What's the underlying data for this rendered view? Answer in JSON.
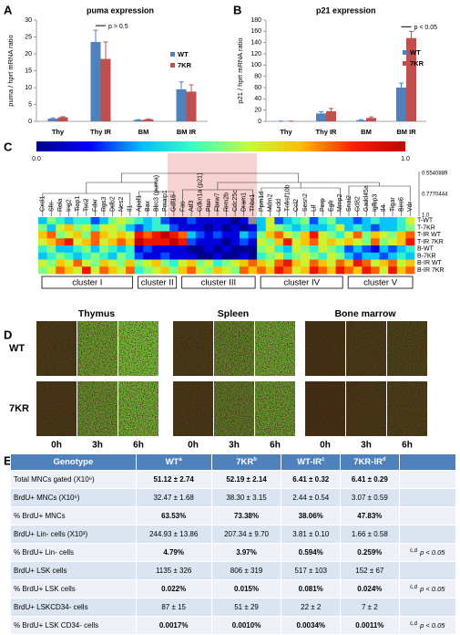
{
  "chart_data": [
    {
      "type": "bar",
      "panel": "A",
      "title": "puma expression",
      "ylabel": "puma / hprt mRNA ratio",
      "categories": [
        "Thy",
        "Thy IR",
        "BM",
        "BM IR"
      ],
      "series": [
        {
          "name": "WT",
          "color": "#4f81bd",
          "values": [
            0.8,
            23.5,
            0.4,
            9.5
          ],
          "errors": [
            0.2,
            3.5,
            0.1,
            2.2
          ]
        },
        {
          "name": "7KR",
          "color": "#c0504d",
          "values": [
            1.2,
            18.5,
            0.6,
            8.8
          ],
          "errors": [
            0.2,
            5,
            0.1,
            2
          ]
        }
      ],
      "ylim": [
        0,
        30
      ],
      "yticks": [
        0,
        5,
        10,
        15,
        20,
        25,
        30
      ],
      "annotation": "p > 0.5",
      "legend": "right"
    },
    {
      "type": "bar",
      "panel": "B",
      "title": "p21 expression",
      "ylabel": "p21 / hprt mRNA ratio",
      "categories": [
        "Thy",
        "Thy IR",
        "BM",
        "BM IR"
      ],
      "series": [
        {
          "name": "WT",
          "color": "#4f81bd",
          "values": [
            0,
            14,
            2,
            60
          ],
          "errors": [
            0.5,
            3,
            1,
            8
          ]
        },
        {
          "name": "7KR",
          "color": "#c0504d",
          "values": [
            0,
            18,
            6,
            148
          ],
          "errors": [
            0.5,
            5,
            2,
            12
          ]
        }
      ],
      "ylim": [
        0,
        180
      ],
      "yticks": [
        0,
        20,
        40,
        60,
        80,
        100,
        120,
        140,
        160,
        180
      ],
      "annotation": "p < 0.05",
      "legend": "right"
    }
  ],
  "panel_c": {
    "letter": "C",
    "scale": [
      {
        "value": 0,
        "label": "0.0"
      },
      {
        "value": 1,
        "label": "1.0"
      }
    ],
    "colormap": [
      "#00008f",
      "#0000ff",
      "#00bfff",
      "#40ffbf",
      "#bfff40",
      "#ffbf00",
      "#ff2000",
      "#c00000"
    ],
    "dendrogram_scale": [
      "0.5540889",
      "0.7770444",
      "1.0"
    ],
    "genes": [
      "Cxcl1",
      "Sfn",
      "Rela",
      "Ing2",
      "Tiap1",
      "Tsc2",
      "Fdxr",
      "Rgs3",
      "Ddb2",
      "Nes2",
      "Il1",
      "Apaf1",
      "Bax",
      "Bbc3 (puma)",
      "Pmaip1",
      "Gdf15",
      "Fas",
      "Atf3",
      "Cdkn1a (p21)",
      "Ptsn",
      "Fbxw7",
      "Rrm2b",
      "Cdc25c",
      "Dram1",
      "Thbs1",
      "Ppm1d",
      "Mdm2",
      "Lrdd",
      "Tnfrsf10b",
      "Ccl2",
      "Sesn2",
      "Lif",
      "Perp",
      "Egfr",
      "Mmp2",
      "Snai2",
      "Cd82",
      "Gadd45a",
      "Igfbp3",
      "Il4",
      "Tigar",
      "Birc5",
      "Vdr"
    ],
    "rows": [
      "T-WT",
      "T-7KR",
      "T-IR WT",
      "T-IR 7KR",
      "B-WT",
      "B-7KR",
      "B-IR WT",
      "B-IR 7KR"
    ],
    "values": [
      [
        0.3,
        0.5,
        0.4,
        0.3,
        0.4,
        0.4,
        0.2,
        0.3,
        0.5,
        0.6,
        0.5,
        0.4,
        0.3,
        0.4,
        0.2,
        0.1,
        0.1,
        0.2,
        0.1,
        0.1,
        0.1,
        0.1,
        0.0,
        0.1,
        null,
        0.3,
        0.6,
        0.2,
        0.3,
        0.4,
        0.5,
        0.2,
        0.4,
        0.5,
        0.3,
        0.3,
        0.2,
        0.3,
        0.4,
        0.3,
        0.3,
        0.4,
        0.6
      ],
      [
        0.5,
        0.3,
        0.6,
        0.7,
        0.5,
        0.6,
        0.4,
        0.6,
        0.6,
        0.5,
        0.3,
        0.2,
        0.3,
        0.4,
        0.4,
        0.2,
        0.1,
        0.1,
        0.1,
        0.0,
        0.1,
        0.0,
        0.1,
        0.0,
        0.1,
        0.3,
        0.6,
        0.5,
        0.4,
        0.3,
        0.4,
        0.3,
        0.3,
        0.4,
        0.6,
        0.3,
        0.4,
        0.3,
        0.2,
        0.3,
        0.3,
        0.4,
        0.5
      ],
      [
        0.7,
        0.8,
        0.5,
        0.6,
        0.7,
        0.5,
        0.8,
        0.7,
        0.6,
        0.7,
        0.6,
        0.9,
        0.8,
        0.9,
        1.0,
        0.9,
        0.8,
        0.3,
        0.2,
        0.1,
        0.2,
        0.1,
        0.1,
        0.3,
        0.2,
        0.5,
        0.7,
        0.8,
        0.6,
        0.5,
        0.7,
        0.9,
        0.6,
        0.5,
        0.4,
        0.6,
        0.8,
        0.5,
        0.7,
        0.6,
        0.5,
        0.7,
        0.8
      ],
      [
        0.6,
        0.7,
        0.8,
        0.9,
        0.6,
        0.7,
        0.8,
        0.6,
        0.7,
        0.8,
        0.7,
        1.0,
        0.9,
        0.9,
        0.9,
        1.0,
        0.9,
        0.2,
        0.1,
        0.1,
        0.1,
        0.0,
        0.1,
        0.2,
        0.1,
        0.6,
        0.5,
        0.7,
        0.9,
        0.6,
        0.7,
        0.8,
        0.6,
        0.7,
        0.6,
        0.7,
        0.6,
        0.5,
        0.8,
        0.5,
        0.6,
        0.7,
        0.9
      ],
      [
        0.4,
        0.5,
        0.3,
        0.3,
        0.4,
        0.5,
        0.3,
        0.5,
        0.4,
        0.3,
        0.4,
        0.1,
        0.2,
        0.1,
        0.1,
        0.1,
        0.1,
        0.0,
        0.0,
        0.1,
        0.0,
        0.1,
        0.0,
        0.0,
        0.0,
        0.5,
        0.6,
        0.4,
        0.3,
        0.6,
        0.5,
        0.4,
        0.6,
        0.5,
        0.4,
        0.2,
        0.3,
        0.2,
        0.1,
        0.3,
        0.2,
        0.3,
        0.4
      ],
      [
        0.3,
        0.4,
        0.5,
        0.4,
        0.3,
        0.4,
        0.5,
        0.4,
        0.3,
        0.5,
        0.4,
        0.2,
        0.1,
        0.1,
        0.2,
        0.1,
        0.1,
        0.1,
        0.0,
        0.0,
        0.1,
        0.0,
        0.0,
        0.1,
        0.0,
        0.4,
        0.5,
        0.6,
        0.4,
        0.5,
        0.6,
        0.5,
        0.4,
        0.6,
        0.5,
        0.3,
        0.2,
        0.3,
        0.3,
        0.2,
        0.3,
        0.4,
        0.3
      ],
      [
        0.6,
        0.5,
        0.7,
        0.6,
        0.8,
        0.6,
        0.5,
        0.7,
        0.6,
        0.5,
        0.7,
        0.5,
        0.6,
        0.7,
        0.5,
        0.4,
        0.6,
        0.7,
        0.5,
        0.6,
        0.4,
        0.5,
        0.6,
        0.7,
        0.8,
        0.7,
        0.6,
        0.8,
        0.9,
        0.7,
        0.6,
        0.8,
        0.7,
        0.6,
        0.8,
        0.7,
        0.9,
        0.8,
        0.6,
        0.7,
        0.8,
        0.6,
        0.7
      ],
      [
        0.5,
        0.6,
        0.8,
        0.7,
        0.6,
        0.9,
        0.6,
        0.8,
        0.7,
        0.6,
        0.8,
        0.4,
        0.5,
        0.6,
        0.7,
        0.5,
        0.7,
        0.8,
        0.6,
        0.5,
        0.7,
        0.6,
        0.5,
        0.8,
        0.7,
        0.8,
        0.7,
        0.9,
        0.8,
        0.6,
        0.7,
        0.9,
        0.8,
        0.7,
        0.9,
        0.8,
        0.7,
        0.9,
        0.8,
        0.6,
        0.9,
        0.7,
        0.8
      ]
    ],
    "clusters": [
      "cluster I",
      "cluster II",
      "cluster III",
      "cluster IV",
      "cluster V"
    ]
  },
  "panel_d": {
    "letter": "D",
    "columns": [
      "Thymus",
      "Spleen",
      "Bone marrow"
    ],
    "rows": [
      "WT",
      "7KR"
    ],
    "times": [
      "0h",
      "3h",
      "6h"
    ]
  },
  "panel_e": {
    "letter": "E",
    "header": [
      {
        "name": "Genotype"
      },
      {
        "name": "WT",
        "sup": "a"
      },
      {
        "name": "7KR",
        "sup": "b"
      },
      {
        "name": "WT-IR",
        "sup": "c"
      },
      {
        "name": "7KR-IR",
        "sup": "d"
      }
    ],
    "rows": [
      {
        "label": "Total MNCs gated (X10⁶)",
        "cells": [
          "51.12 ± 2.74",
          "52.19 ± 2.14",
          "6.41 ± 0.32",
          "6.41 ± 0.29"
        ]
      },
      {
        "label": "BrdU+ MNCs (X10⁶)",
        "cells": [
          "32.47 ± 1.68",
          "38.30 ± 3.15",
          "2.44 ± 0.54",
          "3.07 ± 0.59"
        ]
      },
      {
        "label": "% BrdU+ MNCs",
        "cells": [
          "63.53%",
          "73.38%",
          "38.06%",
          "47.83%"
        ]
      },
      {
        "label": "BrdU+ Lin- cells (X10³)",
        "cells": [
          "244.93 ± 13.86",
          "207.34 ± 9.70",
          "3.81 ± 0.10",
          "1.66 ± 0.58"
        ]
      },
      {
        "label": "% BrdU+ Lin- cells",
        "cells": [
          "4.79%",
          "3.97%",
          "0.594%",
          "0.259%"
        ],
        "note": {
          "sup": "c,d",
          "text": "p < 0.05"
        }
      },
      {
        "label": "BrdU+ LSK cells",
        "cells": [
          "1135 ± 326",
          "806 ± 319",
          "517 ± 103",
          "152 ± 67"
        ]
      },
      {
        "label": "% BrdU+ LSK cells",
        "cells": [
          "0.022%",
          "0.015%",
          "0.081%",
          "0.024%"
        ],
        "note": {
          "sup": "c,d",
          "text": "p < 0.05"
        }
      },
      {
        "label": "BrdU+ LSKCD34- cells",
        "cells": [
          "87 ± 15",
          "51 ± 29",
          "22 ± 2",
          "7 ± 2"
        ]
      },
      {
        "label": "% BrdU+ LSK CD34- cells",
        "cells": [
          "0.0017%",
          "0.0010%",
          "0.0034%",
          "0.0011%"
        ],
        "note": {
          "sup": "c,d",
          "text": "p < 0.05"
        }
      }
    ]
  }
}
